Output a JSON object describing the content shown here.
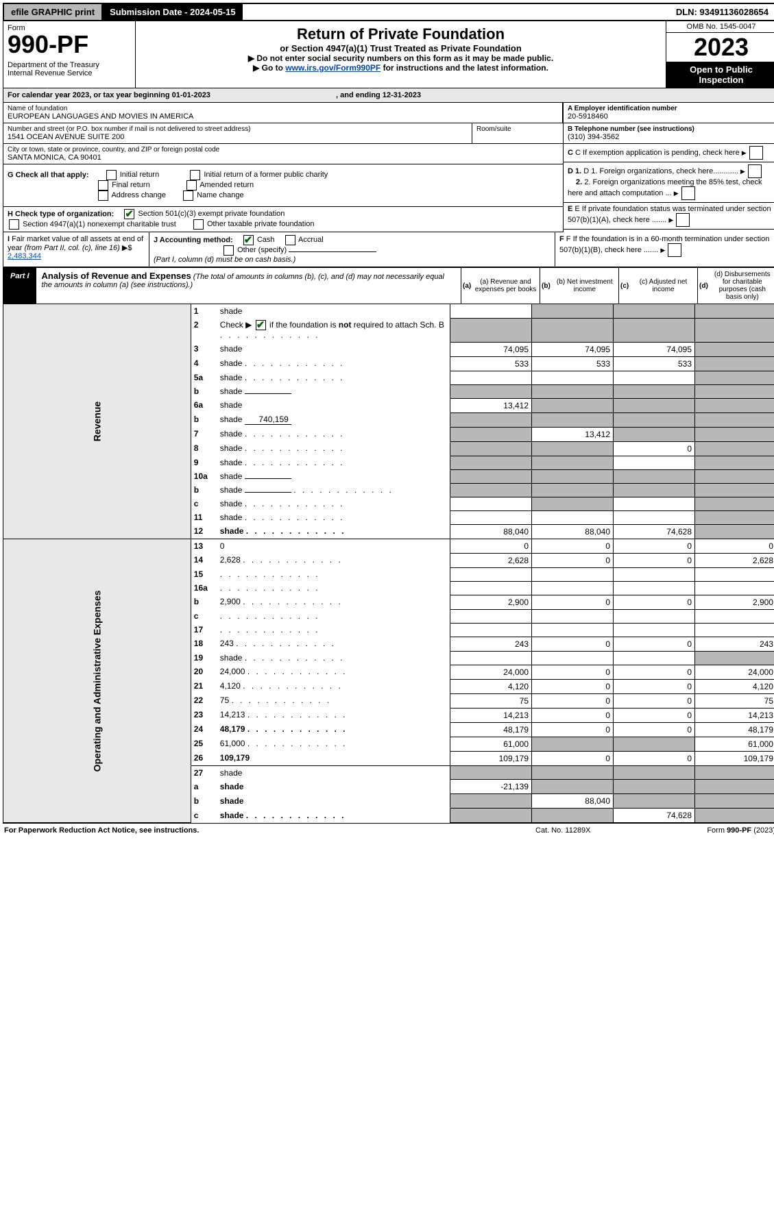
{
  "topbar": {
    "efile": "efile GRAPHIC print",
    "submission_label": "Submission Date - 2024-05-15",
    "dln": "DLN: 93491136028654"
  },
  "header": {
    "form_label": "Form",
    "form_number": "990-PF",
    "dept": "Department of the Treasury\nInternal Revenue Service",
    "title": "Return of Private Foundation",
    "subtitle": "or Section 4947(a)(1) Trust Treated as Private Foundation",
    "note1": "▶ Do not enter social security numbers on this form as it may be made public.",
    "note2_pre": "▶ Go to ",
    "note2_link": "www.irs.gov/Form990PF",
    "note2_post": " for instructions and the latest information.",
    "omb": "OMB No. 1545-0047",
    "year": "2023",
    "open": "Open to Public Inspection"
  },
  "calendar": {
    "text_pre": "For calendar year 2023, or tax year beginning ",
    "begin": "01-01-2023",
    "text_mid": ", and ending ",
    "end": "12-31-2023"
  },
  "entity": {
    "name_lbl": "Name of foundation",
    "name": "EUROPEAN LANGUAGES AND MOVIES IN AMERICA",
    "addr_lbl": "Number and street (or P.O. box number if mail is not delivered to street address)",
    "addr": "1541 OCEAN AVENUE SUITE 200",
    "room_lbl": "Room/suite",
    "city_lbl": "City or town, state or province, country, and ZIP or foreign postal code",
    "city": "SANTA MONICA, CA  90401",
    "ein_lbl": "A Employer identification number",
    "ein": "20-5918460",
    "phone_lbl": "B Telephone number (see instructions)",
    "phone": "(310) 394-3562",
    "c": "C If exemption application is pending, check here",
    "d1": "D 1. Foreign organizations, check here............",
    "d2": "2. Foreign organizations meeting the 85% test, check here and attach computation ...",
    "e": "E If private foundation status was terminated under section 507(b)(1)(A), check here .......",
    "f": "F If the foundation is in a 60-month termination under section 507(b)(1)(B), check here .......",
    "g_lbl": "G Check all that apply:",
    "g_opts": [
      "Initial return",
      "Final return",
      "Address change",
      "Initial return of a former public charity",
      "Amended return",
      "Name change"
    ],
    "h_lbl": "H Check type of organization:",
    "h_opts": [
      "Section 501(c)(3) exempt private foundation",
      "Section 4947(a)(1) nonexempt charitable trust",
      "Other taxable private foundation"
    ],
    "i_lbl": "I Fair market value of all assets at end of year (from Part II, col. (c), line 16) ▶$",
    "i_val": "2,483,344",
    "j_lbl": "J Accounting method:",
    "j_opts": [
      "Cash",
      "Accrual",
      "Other (specify)"
    ],
    "j_note": "(Part I, column (d) must be on cash basis.)"
  },
  "part1": {
    "label": "Part I",
    "title": "Analysis of Revenue and Expenses",
    "note": "(The total of amounts in columns (b), (c), and (d) may not necessarily equal the amounts in column (a) (see instructions).)",
    "col_a": "(a) Revenue and expenses per books",
    "col_b": "(b) Net investment income",
    "col_c": "(c) Adjusted net income",
    "col_d": "(d) Disbursements for charitable purposes (cash basis only)"
  },
  "sections": {
    "revenue": "Revenue",
    "expenses": "Operating and Administrative Expenses"
  },
  "lines": [
    {
      "n": "1",
      "d": "shade",
      "a": "",
      "b": "shade",
      "c": "shade"
    },
    {
      "n": "2",
      "d": "shade",
      "a": "shade",
      "b": "shade",
      "c": "shade",
      "dots": true,
      "checkbox": true
    },
    {
      "n": "3",
      "d": "shade",
      "a": "74,095",
      "b": "74,095",
      "c": "74,095"
    },
    {
      "n": "4",
      "d": "shade",
      "a": "533",
      "b": "533",
      "c": "533",
      "dots": true
    },
    {
      "n": "5a",
      "d": "shade",
      "a": "",
      "b": "",
      "c": "",
      "dots": true
    },
    {
      "n": "b",
      "d": "shade",
      "a": "shade",
      "b": "shade",
      "c": "shade",
      "inline": true
    },
    {
      "n": "6a",
      "d": "shade",
      "a": "13,412",
      "b": "shade",
      "c": "shade"
    },
    {
      "n": "b",
      "d": "shade",
      "a": "shade",
      "b": "shade",
      "c": "shade",
      "inline": true,
      "inlineval": "740,159"
    },
    {
      "n": "7",
      "d": "shade",
      "a": "shade",
      "b": "13,412",
      "c": "shade",
      "dots": true
    },
    {
      "n": "8",
      "d": "shade",
      "a": "shade",
      "b": "shade",
      "c": "0",
      "dots": true
    },
    {
      "n": "9",
      "d": "shade",
      "a": "shade",
      "b": "shade",
      "c": "",
      "dots": true
    },
    {
      "n": "10a",
      "d": "shade",
      "a": "shade",
      "b": "shade",
      "c": "shade",
      "inline": true
    },
    {
      "n": "b",
      "d": "shade",
      "a": "shade",
      "b": "shade",
      "c": "shade",
      "inline": true,
      "dots": true
    },
    {
      "n": "c",
      "d": "shade",
      "a": "",
      "b": "shade",
      "c": "",
      "dots": true
    },
    {
      "n": "11",
      "d": "shade",
      "a": "",
      "b": "",
      "c": "",
      "dots": true
    },
    {
      "n": "12",
      "d": "shade",
      "a": "88,040",
      "b": "88,040",
      "c": "74,628",
      "bold": true,
      "sep": true,
      "dots": true
    }
  ],
  "exp_lines": [
    {
      "n": "13",
      "d": "0",
      "a": "0",
      "b": "0",
      "c": "0"
    },
    {
      "n": "14",
      "d": "2,628",
      "a": "2,628",
      "b": "0",
      "c": "0",
      "dots": true
    },
    {
      "n": "15",
      "d": "",
      "a": "",
      "b": "",
      "c": "",
      "dots": true
    },
    {
      "n": "16a",
      "d": "",
      "a": "",
      "b": "",
      "c": "",
      "dots": true
    },
    {
      "n": "b",
      "d": "2,900",
      "a": "2,900",
      "b": "0",
      "c": "0",
      "dots": true
    },
    {
      "n": "c",
      "d": "",
      "a": "",
      "b": "",
      "c": "",
      "dots": true
    },
    {
      "n": "17",
      "d": "",
      "a": "",
      "b": "",
      "c": "",
      "dots": true
    },
    {
      "n": "18",
      "d": "243",
      "a": "243",
      "b": "0",
      "c": "0",
      "dots": true
    },
    {
      "n": "19",
      "d": "shade",
      "a": "",
      "b": "",
      "c": "",
      "dots": true
    },
    {
      "n": "20",
      "d": "24,000",
      "a": "24,000",
      "b": "0",
      "c": "0",
      "dots": true
    },
    {
      "n": "21",
      "d": "4,120",
      "a": "4,120",
      "b": "0",
      "c": "0",
      "dots": true
    },
    {
      "n": "22",
      "d": "75",
      "a": "75",
      "b": "0",
      "c": "0",
      "dots": true
    },
    {
      "n": "23",
      "d": "14,213",
      "a": "14,213",
      "b": "0",
      "c": "0",
      "dots": true
    },
    {
      "n": "24",
      "d": "48,179",
      "a": "48,179",
      "b": "0",
      "c": "0",
      "bold": true,
      "dots": true
    },
    {
      "n": "25",
      "d": "61,000",
      "a": "61,000",
      "b": "shade",
      "c": "shade",
      "dots": true
    },
    {
      "n": "26",
      "d": "109,179",
      "a": "109,179",
      "b": "0",
      "c": "0",
      "bold": true,
      "sep": true
    },
    {
      "n": "27",
      "d": "shade",
      "a": "shade",
      "b": "shade",
      "c": "shade"
    },
    {
      "n": "a",
      "d": "shade",
      "a": "-21,139",
      "b": "shade",
      "c": "shade",
      "bold": true
    },
    {
      "n": "b",
      "d": "shade",
      "a": "shade",
      "b": "88,040",
      "c": "shade",
      "bold": true
    },
    {
      "n": "c",
      "d": "shade",
      "a": "shade",
      "b": "shade",
      "c": "74,628",
      "bold": true,
      "dots": true
    }
  ],
  "footer": {
    "l": "For Paperwork Reduction Act Notice, see instructions.",
    "m": "Cat. No. 11289X",
    "r": "Form 990-PF (2023)"
  }
}
